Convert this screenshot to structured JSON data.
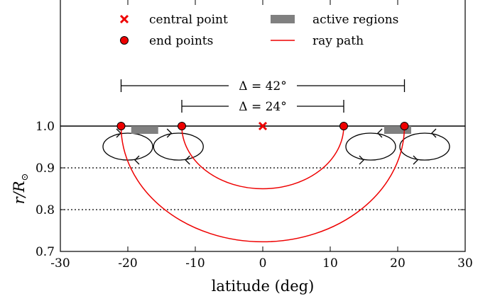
{
  "chart_data": {
    "type": "line",
    "xlabel": "latitude (deg)",
    "ylabel_main": "r/R",
    "ylabel_sub": "⊙",
    "xlim": [
      -30,
      30
    ],
    "ylim": [
      0.7,
      1.0
    ],
    "x_ticks": [
      -30,
      -20,
      -10,
      0,
      10,
      20,
      30
    ],
    "x_tick_labels": [
      "-30",
      "-20",
      "-10",
      "0",
      "10",
      "20",
      "30"
    ],
    "y_ticks": [
      0.7,
      0.8,
      0.9,
      1.0
    ],
    "y_tick_labels": [
      "0.7",
      "0.8",
      "0.9",
      "1.0"
    ],
    "reference_lines": [
      {
        "y": 1.0,
        "style": "solid"
      },
      {
        "y": 0.9,
        "style": "dotted"
      },
      {
        "y": 0.8,
        "style": "dotted"
      }
    ],
    "legend": {
      "placement": "top",
      "entries": [
        {
          "label": "central point",
          "marker": "x"
        },
        {
          "label": "active regions",
          "marker": "rect"
        },
        {
          "label": "end points",
          "marker": "circle"
        },
        {
          "label": "ray path",
          "marker": "line"
        }
      ]
    },
    "central_point": {
      "x": 0,
      "y": 1.0
    },
    "end_points": [
      {
        "x": -21,
        "y": 1.0
      },
      {
        "x": -12,
        "y": 1.0
      },
      {
        "x": 12,
        "y": 1.0
      },
      {
        "x": 21,
        "y": 1.0
      }
    ],
    "ray_paths": [
      {
        "x_start": -12,
        "x_end": 12,
        "min_r": 0.85
      },
      {
        "x_start": -21,
        "x_end": 21,
        "min_r": 0.723
      }
    ],
    "active_regions": [
      {
        "x_start": -19.5,
        "x_end": -15.5
      },
      {
        "x_start": 18,
        "x_end": 22
      }
    ],
    "distance_labels": [
      {
        "text": "Δ = 42°",
        "x_start": -21,
        "x_end": 21
      },
      {
        "text": "Δ = 24°",
        "x_start": -12,
        "x_end": 12
      }
    ],
    "flow_cells": [
      {
        "x_center": -20,
        "direction": "ccw"
      },
      {
        "x_center": -12.5,
        "direction": "ccw"
      },
      {
        "x_center": 16,
        "direction": "cw"
      },
      {
        "x_center": 24,
        "direction": "cw"
      }
    ],
    "colors": {
      "red": "#ee0000",
      "gray": "#808080",
      "black": "#000000"
    }
  }
}
